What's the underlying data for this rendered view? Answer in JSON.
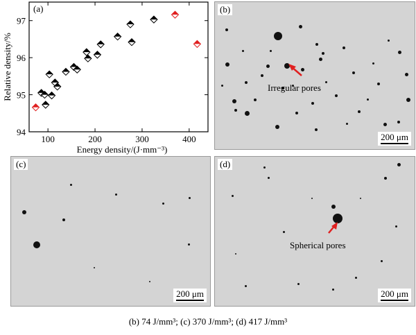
{
  "panel_a": {
    "tag": "(a)",
    "chart_data": {
      "type": "scatter",
      "xlabel": "Energy density/(J·mm⁻³)",
      "ylabel": "Relative density/%",
      "xlim": [
        60,
        440
      ],
      "ylim": [
        94,
        97.5
      ],
      "xticks": [
        "100",
        "200",
        "300",
        "400"
      ],
      "yticks": [
        "94",
        "95",
        "96",
        "97"
      ],
      "series": [
        {
          "color": "#000000",
          "points": [
            [
              86,
              95.05
            ],
            [
              93,
              95.0
            ],
            [
              95,
              94.73
            ],
            [
              103,
              95.55
            ],
            [
              108,
              94.98
            ],
            [
              115,
              95.33
            ],
            [
              120,
              95.22
            ],
            [
              138,
              95.62
            ],
            [
              155,
              95.75
            ],
            [
              162,
              95.68
            ],
            [
              182,
              96.15
            ],
            [
              185,
              95.98
            ],
            [
              205,
              96.08
            ],
            [
              212,
              96.36
            ],
            [
              248,
              96.57
            ],
            [
              275,
              96.9
            ],
            [
              278,
              96.42
            ],
            [
              325,
              97.03
            ]
          ]
        },
        {
          "color": "#e02020",
          "points": [
            [
              74,
              94.66
            ],
            [
              370,
              97.16
            ],
            [
              417,
              96.37
            ]
          ]
        }
      ]
    }
  },
  "panel_b": {
    "tag": "(b)",
    "scale": "200 μm",
    "annotation": "Irregular pores"
  },
  "panel_c": {
    "tag": "(c)",
    "scale": "200 μm"
  },
  "panel_d": {
    "tag": "(d)",
    "scale": "200 μm",
    "annotation": "Spherical pores"
  },
  "caption": "(b) 74 J/mm³; (c) 370 J/mm³; (d) 417 J/mm³",
  "colors": {
    "arrow": "#e02020",
    "marker_red": "#e02020"
  }
}
